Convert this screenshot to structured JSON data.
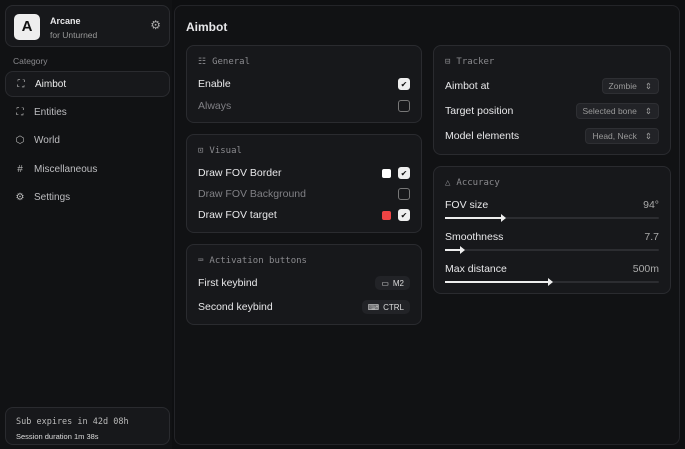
{
  "app": {
    "logo": "A",
    "name": "Arcane",
    "subtitle": "for Unturned",
    "settings_icon": "gear-icon"
  },
  "sidebar": {
    "category_label": "Category",
    "items": [
      {
        "label": "Aimbot",
        "icon": "crosshair-icon",
        "active": true
      },
      {
        "label": "Entities",
        "icon": "scan-face-icon"
      },
      {
        "label": "World",
        "icon": "globe-icon"
      },
      {
        "label": "Miscellaneous",
        "icon": "grid-icon"
      },
      {
        "label": "Settings",
        "icon": "gear-icon"
      }
    ]
  },
  "subscription": {
    "expires": "Sub expires in 42d 08h",
    "session": "Session duration 1m 38s"
  },
  "main": {
    "title": "Aimbot"
  },
  "general": {
    "title": "General",
    "rows": [
      {
        "label": "Enable",
        "checked": true
      },
      {
        "label": "Always",
        "checked": false
      }
    ]
  },
  "visual": {
    "title": "Visual",
    "rows": [
      {
        "label": "Draw FOV Border",
        "checked": true,
        "color": "#ffffff"
      },
      {
        "label": "Draw FOV Background",
        "checked": false
      },
      {
        "label": "Draw FOV target",
        "checked": true,
        "color": "#ef4444"
      }
    ]
  },
  "activation": {
    "title": "Activation buttons",
    "rows": [
      {
        "label": "First keybind",
        "key": "M2",
        "icon": "mouse-icon"
      },
      {
        "label": "Second keybind",
        "key": "CTRL",
        "icon": "keyboard-icon"
      }
    ]
  },
  "tracker": {
    "title": "Tracker",
    "rows": [
      {
        "label": "Aimbot at",
        "value": "Zombie"
      },
      {
        "label": "Target position",
        "value": "Selected bone"
      },
      {
        "label": "Model elements",
        "value": "Head, Neck"
      }
    ]
  },
  "accuracy": {
    "title": "Accuracy",
    "sliders": [
      {
        "label": "FOV size",
        "value": "94°",
        "fraction": 0.27
      },
      {
        "label": "Smoothness",
        "value": "7.7",
        "fraction": 0.08
      },
      {
        "label": "Max distance",
        "value": "500m",
        "fraction": 0.49
      }
    ]
  }
}
